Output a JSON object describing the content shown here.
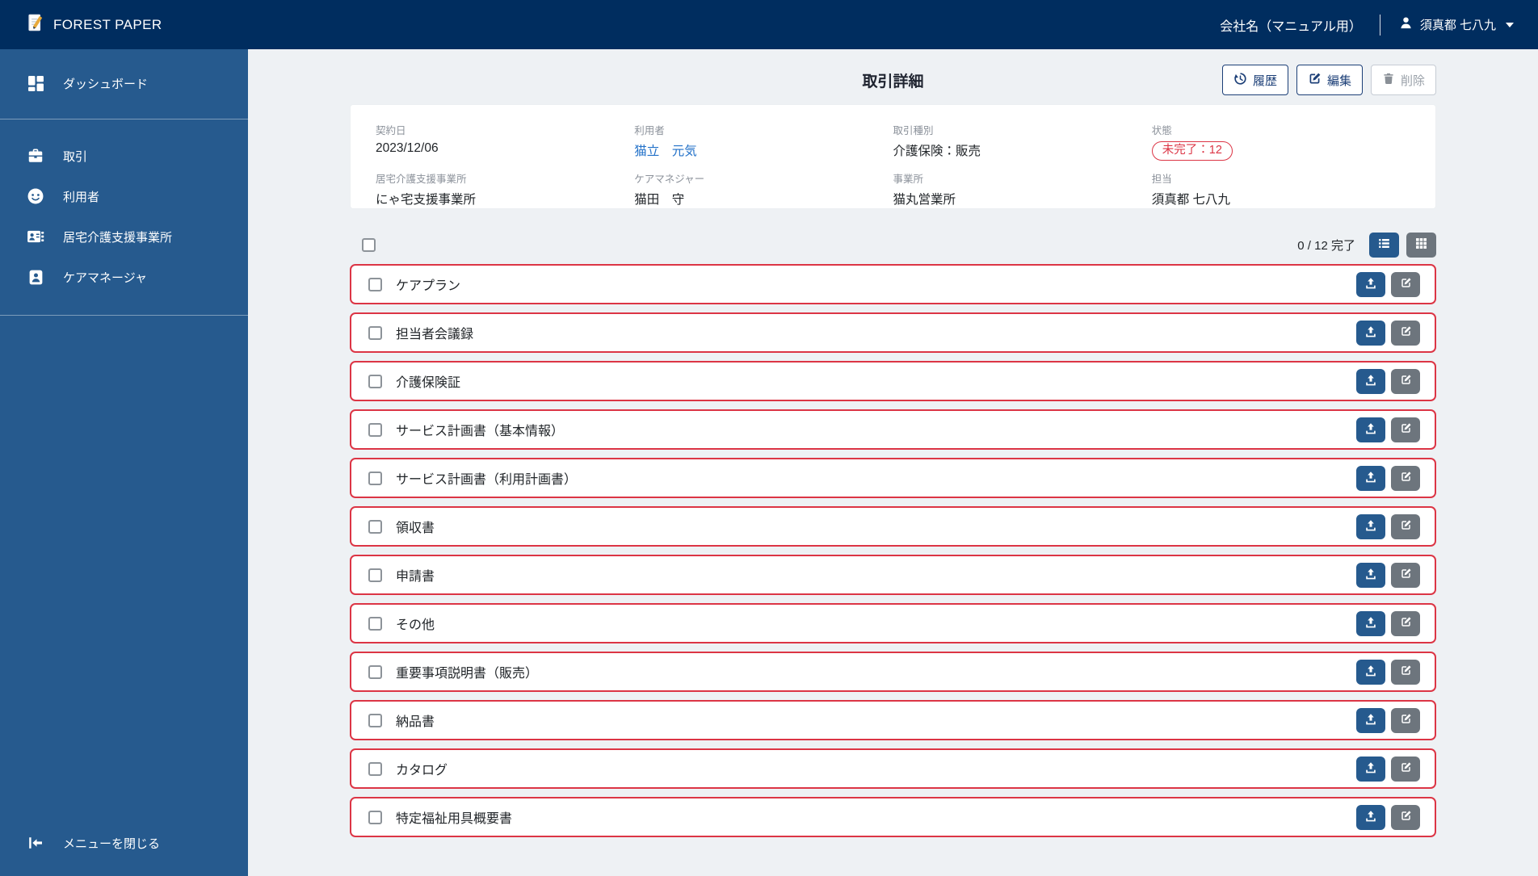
{
  "topbar": {
    "brand": "FOREST PAPER",
    "company": "会社名（マニュアル用）",
    "user": "須真都 七八九",
    "icons": {
      "logo": "notepad-pencil-icon",
      "user": "person-icon",
      "caret": "caret-down-icon"
    }
  },
  "sidebar": {
    "items": [
      {
        "label": "ダッシュボード",
        "icon": "dashboard-icon"
      },
      {
        "label": "取引",
        "icon": "briefcase-icon"
      },
      {
        "label": "利用者",
        "icon": "face-icon"
      },
      {
        "label": "居宅介護支援事業所",
        "icon": "id-card-icon"
      },
      {
        "label": "ケアマネージャ",
        "icon": "person-badge-icon"
      }
    ],
    "close_menu": {
      "label": "メニューを閉じる",
      "icon": "collapse-menu-icon"
    }
  },
  "header": {
    "title": "取引詳細",
    "buttons": [
      {
        "label": "履歴",
        "icon": "history-icon",
        "style": "outline"
      },
      {
        "label": "編集",
        "icon": "edit-icon",
        "style": "outline"
      },
      {
        "label": "削除",
        "icon": "trash-icon",
        "style": "disabled"
      }
    ]
  },
  "details": {
    "fields": [
      {
        "label": "契約日",
        "value": "2023/12/06",
        "type": "text"
      },
      {
        "label": "利用者",
        "value": "猫立　元気",
        "type": "link"
      },
      {
        "label": "取引種別",
        "value": "介護保険：販売",
        "type": "text"
      },
      {
        "label": "状態",
        "value": "未完了：12",
        "type": "badge"
      },
      {
        "label": "居宅介護支援事業所",
        "value": "にゃ宅支援事業所",
        "type": "text"
      },
      {
        "label": "ケアマネジャー",
        "value": "猫田　守",
        "type": "text"
      },
      {
        "label": "事業所",
        "value": "猫丸営業所",
        "type": "text"
      },
      {
        "label": "担当",
        "value": "須真都 七八九",
        "type": "text"
      }
    ]
  },
  "documents": {
    "progress": "0 / 12 完了",
    "view_icons": {
      "list": "list-view-icon",
      "grid": "grid-view-icon"
    },
    "row_icons": {
      "upload": "upload-icon",
      "edit": "edit-icon"
    },
    "items": [
      "ケアプラン",
      "担当者会議録",
      "介護保険証",
      "サービス計画書（基本情報）",
      "サービス計画書（利用計画書）",
      "領収書",
      "申請書",
      "その他",
      "重要事項説明書（販売）",
      "納品書",
      "カタログ",
      "特定福祉用具概要書"
    ]
  },
  "colors": {
    "topbar": "#002d5f",
    "sidebar": "#265a8e",
    "main_bg": "#eef1f4",
    "accent_red": "#dc3545",
    "link_blue": "#2170c8",
    "button_navy": "#1c3f77",
    "button_gray": "#6d757d"
  }
}
